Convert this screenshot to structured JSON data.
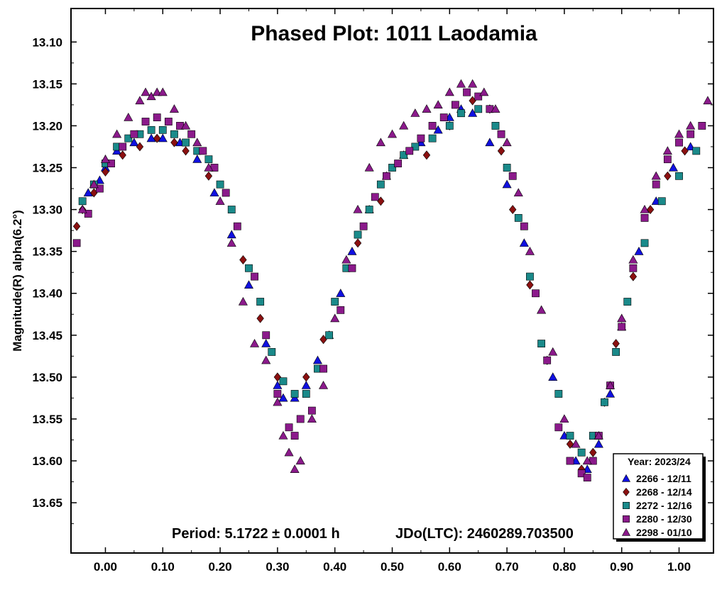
{
  "chart_data": {
    "type": "scatter",
    "title": "Phased Plot: 1011 Laodamia",
    "ylabel": "Magnitude(R) alpha(6.2°)",
    "xlabel": "",
    "xlim": [
      -0.06,
      1.06
    ],
    "ylim": [
      13.71,
      13.06
    ],
    "y_inverted": true,
    "grid": false,
    "legend_position": "bottom-right",
    "x_ticks": [
      "0.00",
      "0.10",
      "0.20",
      "0.30",
      "0.40",
      "0.50",
      "0.60",
      "0.70",
      "0.80",
      "0.90",
      "1.00"
    ],
    "y_ticks": [
      "13.10",
      "13.15",
      "13.20",
      "13.25",
      "13.30",
      "13.35",
      "13.40",
      "13.45",
      "13.50",
      "13.55",
      "13.60",
      "13.65"
    ],
    "annotations": {
      "period": "Period: 5.1722 ± 0.0001 h",
      "jdo": "JDo(LTC): 2460289.703500"
    },
    "legend_title": "Year: 2023/24",
    "series": [
      {
        "name": "2266 - 12/11",
        "marker": "triangle",
        "color": "#1010e0",
        "x": [
          -0.03,
          -0.01,
          0.0,
          0.02,
          0.05,
          0.08,
          0.1,
          0.13,
          0.16,
          0.19,
          0.22,
          0.25,
          0.28,
          0.3,
          0.31,
          0.33,
          0.35,
          0.37,
          0.39,
          0.41,
          0.43,
          0.46,
          0.49,
          0.52,
          0.55,
          0.58,
          0.6,
          0.62,
          0.64,
          0.67,
          0.7,
          0.73,
          0.76,
          0.78,
          0.8,
          0.82,
          0.84,
          0.86,
          0.88,
          0.9,
          0.93,
          0.96,
          0.99,
          1.02
        ],
        "y": [
          13.28,
          13.265,
          13.25,
          13.23,
          13.22,
          13.215,
          13.215,
          13.22,
          13.24,
          13.28,
          13.33,
          13.39,
          13.46,
          13.51,
          13.525,
          13.525,
          13.51,
          13.48,
          13.45,
          13.4,
          13.35,
          13.3,
          13.26,
          13.235,
          13.22,
          13.205,
          13.19,
          13.18,
          13.185,
          13.22,
          13.27,
          13.34,
          13.42,
          13.5,
          13.57,
          13.6,
          13.61,
          13.58,
          13.52,
          13.44,
          13.35,
          13.29,
          13.25,
          13.225
        ]
      },
      {
        "name": "2268 - 12/14",
        "marker": "diamond",
        "color": "#8b1010",
        "x": [
          -0.05,
          -0.04,
          -0.02,
          0.0,
          0.03,
          0.06,
          0.09,
          0.12,
          0.14,
          0.18,
          0.24,
          0.27,
          0.3,
          0.35,
          0.38,
          0.44,
          0.48,
          0.56,
          0.6,
          0.64,
          0.67,
          0.69,
          0.71,
          0.74,
          0.77,
          0.81,
          0.83,
          0.85,
          0.87,
          0.89,
          0.92,
          0.95,
          0.98,
          1.01
        ],
        "y": [
          13.32,
          13.3,
          13.28,
          13.255,
          13.235,
          13.225,
          13.215,
          13.22,
          13.23,
          13.26,
          13.36,
          13.43,
          13.5,
          13.5,
          13.455,
          13.34,
          13.29,
          13.235,
          13.2,
          13.17,
          13.18,
          13.23,
          13.3,
          13.39,
          13.48,
          13.58,
          13.61,
          13.59,
          13.53,
          13.46,
          13.38,
          13.3,
          13.26,
          13.23
        ]
      },
      {
        "name": "2272 - 12/16",
        "marker": "square",
        "color": "#1a8a8a",
        "x": [
          -0.04,
          -0.02,
          0.0,
          0.02,
          0.04,
          0.06,
          0.08,
          0.1,
          0.12,
          0.14,
          0.16,
          0.18,
          0.2,
          0.22,
          0.25,
          0.27,
          0.29,
          0.31,
          0.33,
          0.35,
          0.37,
          0.39,
          0.4,
          0.42,
          0.44,
          0.46,
          0.48,
          0.5,
          0.52,
          0.54,
          0.57,
          0.6,
          0.62,
          0.65,
          0.68,
          0.7,
          0.72,
          0.74,
          0.76,
          0.79,
          0.81,
          0.83,
          0.85,
          0.87,
          0.89,
          0.91,
          0.94,
          0.97,
          1.0,
          1.03
        ],
        "y": [
          13.29,
          13.27,
          13.245,
          13.225,
          13.215,
          13.21,
          13.205,
          13.205,
          13.21,
          13.22,
          13.23,
          13.24,
          13.27,
          13.3,
          13.37,
          13.41,
          13.47,
          13.505,
          13.52,
          13.52,
          13.49,
          13.45,
          13.41,
          13.37,
          13.33,
          13.3,
          13.27,
          13.25,
          13.235,
          13.225,
          13.215,
          13.2,
          13.185,
          13.18,
          13.2,
          13.25,
          13.31,
          13.38,
          13.46,
          13.52,
          13.57,
          13.59,
          13.57,
          13.53,
          13.47,
          13.41,
          13.34,
          13.29,
          13.26,
          13.23
        ]
      },
      {
        "name": "2280 - 12/30",
        "marker": "square",
        "color": "#8b1a8b",
        "x": [
          -0.05,
          -0.03,
          -0.01,
          0.01,
          0.03,
          0.05,
          0.07,
          0.09,
          0.11,
          0.13,
          0.15,
          0.17,
          0.19,
          0.21,
          0.23,
          0.26,
          0.28,
          0.3,
          0.32,
          0.33,
          0.34,
          0.36,
          0.38,
          0.41,
          0.43,
          0.45,
          0.47,
          0.49,
          0.51,
          0.53,
          0.55,
          0.57,
          0.59,
          0.61,
          0.63,
          0.65,
          0.67,
          0.69,
          0.71,
          0.73,
          0.75,
          0.77,
          0.79,
          0.81,
          0.83,
          0.84,
          0.85,
          0.86,
          0.88,
          0.9,
          0.92,
          0.94,
          0.96,
          0.98,
          1.0,
          1.02,
          1.04
        ],
        "y": [
          13.34,
          13.305,
          13.275,
          13.245,
          13.225,
          13.21,
          13.195,
          13.19,
          13.195,
          13.2,
          13.21,
          13.23,
          13.25,
          13.28,
          13.32,
          13.38,
          13.45,
          13.52,
          13.56,
          13.57,
          13.55,
          13.54,
          13.49,
          13.42,
          13.37,
          13.32,
          13.285,
          13.26,
          13.245,
          13.23,
          13.215,
          13.2,
          13.19,
          13.175,
          13.16,
          13.165,
          13.18,
          13.21,
          13.26,
          13.32,
          13.4,
          13.48,
          13.56,
          13.6,
          13.615,
          13.62,
          13.6,
          13.57,
          13.51,
          13.44,
          13.37,
          13.31,
          13.27,
          13.24,
          13.22,
          13.21,
          13.2
        ]
      },
      {
        "name": "2298 - 01/10",
        "marker": "triangle",
        "color": "#8b1a8b",
        "x": [
          -0.04,
          -0.02,
          0.0,
          0.02,
          0.04,
          0.06,
          0.07,
          0.08,
          0.09,
          0.1,
          0.12,
          0.14,
          0.16,
          0.18,
          0.2,
          0.22,
          0.24,
          0.26,
          0.28,
          0.3,
          0.31,
          0.32,
          0.33,
          0.34,
          0.36,
          0.38,
          0.4,
          0.42,
          0.44,
          0.46,
          0.48,
          0.5,
          0.52,
          0.54,
          0.56,
          0.58,
          0.6,
          0.62,
          0.64,
          0.66,
          0.68,
          0.7,
          0.72,
          0.74,
          0.76,
          0.78,
          0.8,
          0.82,
          0.84,
          0.86,
          0.88,
          0.9,
          0.92,
          0.94,
          0.96,
          0.98,
          1.0,
          1.02,
          1.05
        ],
        "y": [
          13.3,
          13.27,
          13.24,
          13.21,
          13.19,
          13.17,
          13.16,
          13.165,
          13.16,
          13.16,
          13.18,
          13.2,
          13.22,
          13.25,
          13.29,
          13.34,
          13.41,
          13.46,
          13.48,
          13.53,
          13.57,
          13.59,
          13.61,
          13.6,
          13.55,
          13.51,
          13.43,
          13.36,
          13.3,
          13.25,
          13.22,
          13.21,
          13.2,
          13.185,
          13.18,
          13.175,
          13.16,
          13.15,
          13.15,
          13.16,
          13.18,
          13.22,
          13.28,
          13.35,
          13.42,
          13.47,
          13.55,
          13.58,
          13.6,
          13.57,
          13.51,
          13.43,
          13.36,
          13.3,
          13.26,
          13.23,
          13.21,
          13.2,
          13.17
        ]
      }
    ]
  }
}
